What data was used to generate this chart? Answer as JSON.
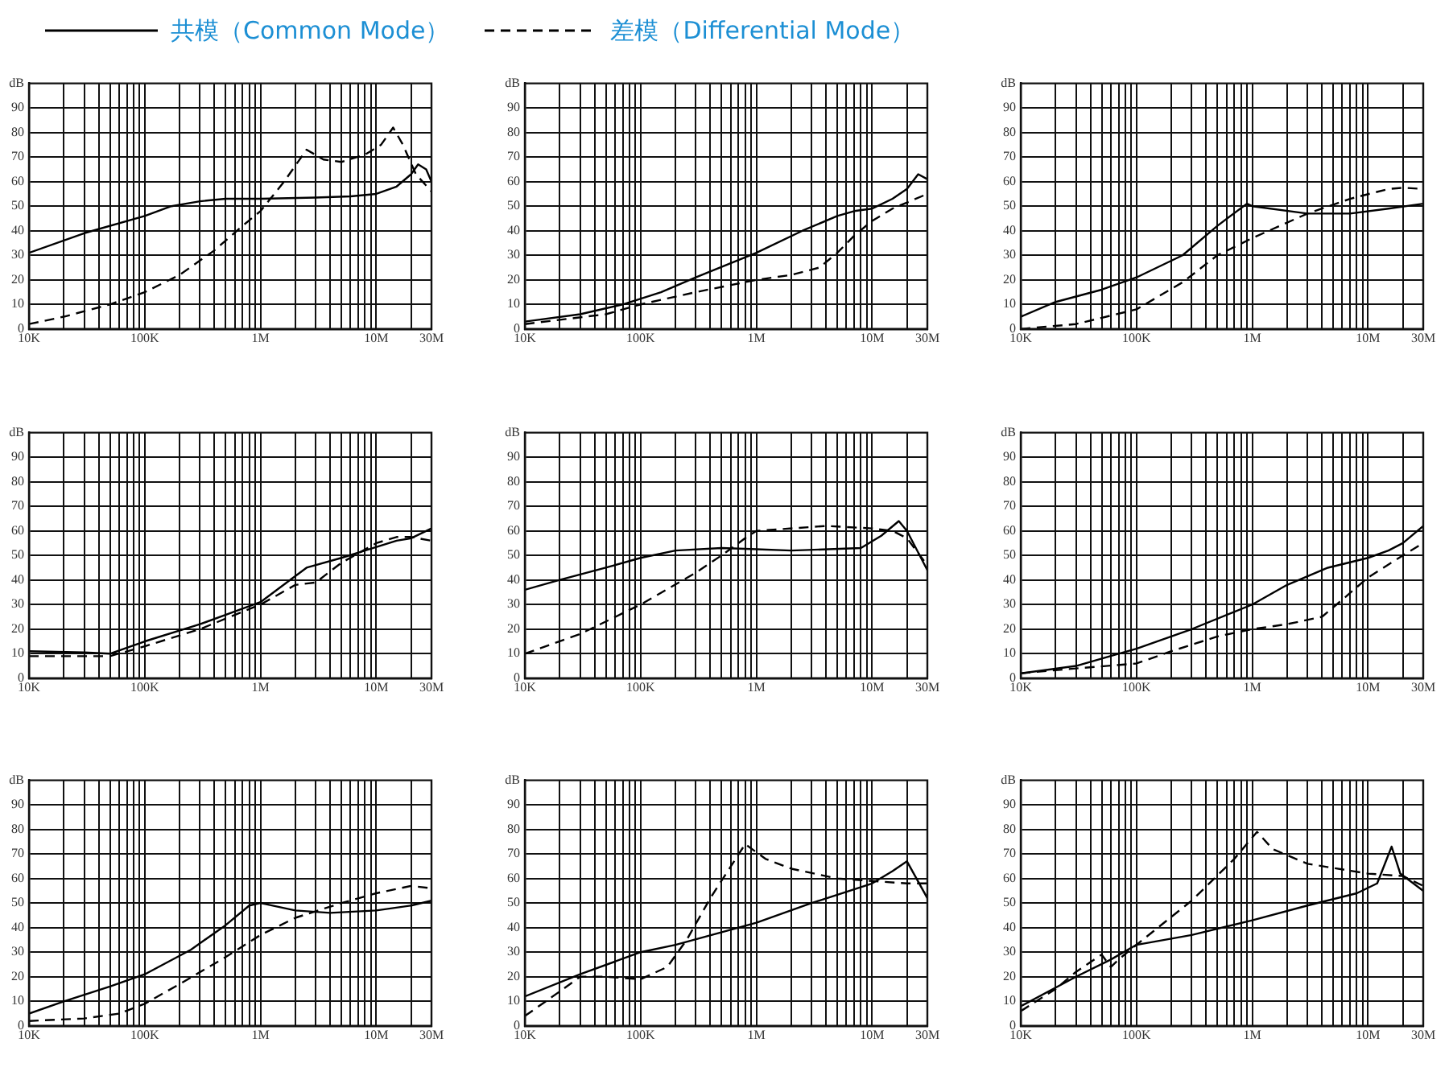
{
  "chart_data": [
    {
      "type": "line",
      "log": "x",
      "legend": "top",
      "grid": true,
      "ylabel": "dB",
      "xlim": [
        10000,
        30000000
      ],
      "ylim": [
        0,
        100
      ],
      "xticks": [
        {
          "value": 10000,
          "label": "10K"
        },
        {
          "value": 20000,
          "label": null
        },
        {
          "value": 30000,
          "label": null
        },
        {
          "value": 40000,
          "label": null
        },
        {
          "value": 50000,
          "label": null
        },
        {
          "value": 60000,
          "label": null
        },
        {
          "value": 70000,
          "label": null
        },
        {
          "value": 80000,
          "label": null
        },
        {
          "value": 90000,
          "label": null
        },
        {
          "value": 100000,
          "label": "100K"
        },
        {
          "value": 200000,
          "label": null
        },
        {
          "value": 300000,
          "label": null
        },
        {
          "value": 400000,
          "label": null
        },
        {
          "value": 500000,
          "label": null
        },
        {
          "value": 600000,
          "label": null
        },
        {
          "value": 700000,
          "label": null
        },
        {
          "value": 800000,
          "label": null
        },
        {
          "value": 900000,
          "label": null
        },
        {
          "value": 1000000,
          "label": "1M"
        },
        {
          "value": 2000000,
          "label": null
        },
        {
          "value": 3000000,
          "label": null
        },
        {
          "value": 4000000,
          "label": null
        },
        {
          "value": 5000000,
          "label": null
        },
        {
          "value": 6000000,
          "label": null
        },
        {
          "value": 7000000,
          "label": null
        },
        {
          "value": 8000000,
          "label": null
        },
        {
          "value": 9000000,
          "label": null
        },
        {
          "value": 10000000,
          "label": "10M"
        },
        {
          "value": 20000000,
          "label": null
        },
        {
          "value": 30000000,
          "label": "30M"
        }
      ],
      "yticks": [
        0,
        10,
        20,
        30,
        40,
        50,
        60,
        70,
        80,
        90
      ],
      "series": [
        {
          "name": "共模（Common Mode）",
          "color": "#000000",
          "line_style": "solid",
          "x": [
            10000,
            30000,
            100000,
            170000,
            300000,
            500000,
            1000000,
            3000000,
            6000000,
            10000000,
            15000000,
            20000000,
            23000000,
            27000000,
            30000000
          ],
          "values": [
            31,
            39,
            46,
            50,
            52,
            53,
            53,
            53.5,
            54,
            55,
            58,
            63,
            67,
            65,
            60
          ]
        },
        {
          "name": "差模（Differential Mode）",
          "color": "#000000",
          "line_style": "dashed",
          "x": [
            10000,
            20000,
            50000,
            100000,
            200000,
            400000,
            700000,
            1000000,
            1600000,
            2500000,
            3500000,
            5000000,
            8000000,
            11000000,
            14000000,
            17000000,
            22000000,
            30000000
          ],
          "values": [
            2,
            5,
            10,
            15,
            22,
            32,
            42,
            48,
            60,
            73,
            69,
            68,
            71,
            75,
            82,
            75,
            63,
            56
          ]
        }
      ]
    },
    {
      "type": "line",
      "log": "x",
      "grid": true,
      "ylabel": "dB",
      "xlim": [
        10000,
        30000000
      ],
      "ylim": [
        0,
        100
      ],
      "xticks": [
        {
          "value": 10000,
          "label": "10K"
        },
        {
          "value": 20000,
          "label": null
        },
        {
          "value": 30000,
          "label": null
        },
        {
          "value": 40000,
          "label": null
        },
        {
          "value": 50000,
          "label": null
        },
        {
          "value": 60000,
          "label": null
        },
        {
          "value": 70000,
          "label": null
        },
        {
          "value": 80000,
          "label": null
        },
        {
          "value": 90000,
          "label": null
        },
        {
          "value": 100000,
          "label": "100K"
        },
        {
          "value": 200000,
          "label": null
        },
        {
          "value": 300000,
          "label": null
        },
        {
          "value": 400000,
          "label": null
        },
        {
          "value": 500000,
          "label": null
        },
        {
          "value": 600000,
          "label": null
        },
        {
          "value": 700000,
          "label": null
        },
        {
          "value": 800000,
          "label": null
        },
        {
          "value": 900000,
          "label": null
        },
        {
          "value": 1000000,
          "label": "1M"
        },
        {
          "value": 2000000,
          "label": null
        },
        {
          "value": 3000000,
          "label": null
        },
        {
          "value": 4000000,
          "label": null
        },
        {
          "value": 5000000,
          "label": null
        },
        {
          "value": 6000000,
          "label": null
        },
        {
          "value": 7000000,
          "label": null
        },
        {
          "value": 8000000,
          "label": null
        },
        {
          "value": 9000000,
          "label": null
        },
        {
          "value": 10000000,
          "label": "10M"
        },
        {
          "value": 20000000,
          "label": null
        },
        {
          "value": 30000000,
          "label": "30M"
        }
      ],
      "yticks": [
        0,
        10,
        20,
        30,
        40,
        50,
        60,
        70,
        80,
        90
      ],
      "series": [
        {
          "color": "#000000",
          "line_style": "solid",
          "x": [
            10000,
            30000,
            70000,
            150000,
            300000,
            1000000,
            2500000,
            5000000,
            7000000,
            10000000,
            15000000,
            20000000,
            25000000,
            30000000
          ],
          "values": [
            3,
            6,
            10,
            15,
            21,
            31,
            40,
            46,
            48,
            49,
            53,
            57,
            63,
            61
          ]
        },
        {
          "color": "#000000",
          "line_style": "dashed",
          "x": [
            10000,
            50000,
            100000,
            300000,
            1000000,
            2000000,
            3500000,
            5000000,
            7000000,
            10000000,
            15000000,
            30000000
          ],
          "values": [
            2,
            6,
            10,
            15,
            20,
            22,
            25,
            31,
            38,
            44,
            49,
            55
          ]
        }
      ]
    },
    {
      "type": "line",
      "log": "x",
      "grid": true,
      "ylabel": "dB",
      "xlim": [
        10000,
        30000000
      ],
      "ylim": [
        0,
        100
      ],
      "xticks": [
        {
          "value": 10000,
          "label": "10K"
        },
        {
          "value": 20000,
          "label": null
        },
        {
          "value": 30000,
          "label": null
        },
        {
          "value": 40000,
          "label": null
        },
        {
          "value": 50000,
          "label": null
        },
        {
          "value": 60000,
          "label": null
        },
        {
          "value": 70000,
          "label": null
        },
        {
          "value": 80000,
          "label": null
        },
        {
          "value": 90000,
          "label": null
        },
        {
          "value": 100000,
          "label": "100K"
        },
        {
          "value": 200000,
          "label": null
        },
        {
          "value": 300000,
          "label": null
        },
        {
          "value": 400000,
          "label": null
        },
        {
          "value": 500000,
          "label": null
        },
        {
          "value": 600000,
          "label": null
        },
        {
          "value": 700000,
          "label": null
        },
        {
          "value": 800000,
          "label": null
        },
        {
          "value": 900000,
          "label": null
        },
        {
          "value": 1000000,
          "label": "1M"
        },
        {
          "value": 2000000,
          "label": null
        },
        {
          "value": 3000000,
          "label": null
        },
        {
          "value": 4000000,
          "label": null
        },
        {
          "value": 5000000,
          "label": null
        },
        {
          "value": 6000000,
          "label": null
        },
        {
          "value": 7000000,
          "label": null
        },
        {
          "value": 8000000,
          "label": null
        },
        {
          "value": 9000000,
          "label": null
        },
        {
          "value": 10000000,
          "label": "10M"
        },
        {
          "value": 20000000,
          "label": null
        },
        {
          "value": 30000000,
          "label": "30M"
        }
      ],
      "yticks": [
        0,
        10,
        20,
        30,
        40,
        50,
        60,
        70,
        80,
        90
      ],
      "series": [
        {
          "color": "#000000",
          "line_style": "solid",
          "x": [
            10000,
            20000,
            50000,
            100000,
            250000,
            500000,
            900000,
            1000000,
            3000000,
            7000000,
            15000000,
            30000000
          ],
          "values": [
            5,
            11,
            16,
            21,
            30,
            42,
            51,
            50,
            47,
            47,
            49,
            51
          ]
        },
        {
          "color": "#000000",
          "line_style": "dashed",
          "x": [
            10000,
            30000,
            100000,
            250000,
            500000,
            1000000,
            3000000,
            7000000,
            15000000,
            20000000,
            30000000
          ],
          "values": [
            0,
            2,
            8,
            19,
            30,
            37,
            47,
            53,
            57,
            57.5,
            57
          ]
        }
      ]
    },
    {
      "type": "line",
      "log": "x",
      "grid": true,
      "ylabel": "dB",
      "xlim": [
        10000,
        30000000
      ],
      "ylim": [
        0,
        100
      ],
      "xticks": [
        {
          "value": 10000,
          "label": "10K"
        },
        {
          "value": 20000,
          "label": null
        },
        {
          "value": 30000,
          "label": null
        },
        {
          "value": 40000,
          "label": null
        },
        {
          "value": 50000,
          "label": null
        },
        {
          "value": 60000,
          "label": null
        },
        {
          "value": 70000,
          "label": null
        },
        {
          "value": 80000,
          "label": null
        },
        {
          "value": 90000,
          "label": null
        },
        {
          "value": 100000,
          "label": "100K"
        },
        {
          "value": 200000,
          "label": null
        },
        {
          "value": 300000,
          "label": null
        },
        {
          "value": 400000,
          "label": null
        },
        {
          "value": 500000,
          "label": null
        },
        {
          "value": 600000,
          "label": null
        },
        {
          "value": 700000,
          "label": null
        },
        {
          "value": 800000,
          "label": null
        },
        {
          "value": 900000,
          "label": null
        },
        {
          "value": 1000000,
          "label": "1M"
        },
        {
          "value": 2000000,
          "label": null
        },
        {
          "value": 3000000,
          "label": null
        },
        {
          "value": 4000000,
          "label": null
        },
        {
          "value": 5000000,
          "label": null
        },
        {
          "value": 6000000,
          "label": null
        },
        {
          "value": 7000000,
          "label": null
        },
        {
          "value": 8000000,
          "label": null
        },
        {
          "value": 9000000,
          "label": null
        },
        {
          "value": 10000000,
          "label": "10M"
        },
        {
          "value": 20000000,
          "label": null
        },
        {
          "value": 30000000,
          "label": "30M"
        }
      ],
      "yticks": [
        0,
        10,
        20,
        30,
        40,
        50,
        60,
        70,
        80,
        90
      ],
      "series": [
        {
          "color": "#000000",
          "line_style": "solid",
          "x": [
            10000,
            30000,
            50000,
            100000,
            300000,
            1000000,
            1800000,
            2500000,
            5000000,
            8000000,
            15000000,
            20000000,
            30000000
          ],
          "values": [
            11,
            10.5,
            10,
            15,
            22,
            31,
            40,
            45,
            49,
            52,
            56,
            57,
            61
          ]
        },
        {
          "color": "#000000",
          "line_style": "dashed",
          "x": [
            10000,
            30000,
            50000,
            100000,
            300000,
            1000000,
            2000000,
            3000000,
            5000000,
            10000000,
            15000000,
            20000000,
            30000000
          ],
          "values": [
            9,
            9,
            9,
            13,
            20,
            30,
            38,
            39,
            47,
            55,
            57.5,
            57.5,
            56
          ]
        }
      ]
    },
    {
      "type": "line",
      "log": "x",
      "grid": true,
      "ylabel": "dB",
      "xlim": [
        10000,
        30000000
      ],
      "ylim": [
        0,
        100
      ],
      "xticks": [
        {
          "value": 10000,
          "label": "10K"
        },
        {
          "value": 20000,
          "label": null
        },
        {
          "value": 30000,
          "label": null
        },
        {
          "value": 40000,
          "label": null
        },
        {
          "value": 50000,
          "label": null
        },
        {
          "value": 60000,
          "label": null
        },
        {
          "value": 70000,
          "label": null
        },
        {
          "value": 80000,
          "label": null
        },
        {
          "value": 90000,
          "label": null
        },
        {
          "value": 100000,
          "label": "100K"
        },
        {
          "value": 200000,
          "label": null
        },
        {
          "value": 300000,
          "label": null
        },
        {
          "value": 400000,
          "label": null
        },
        {
          "value": 500000,
          "label": null
        },
        {
          "value": 600000,
          "label": null
        },
        {
          "value": 700000,
          "label": null
        },
        {
          "value": 800000,
          "label": null
        },
        {
          "value": 900000,
          "label": null
        },
        {
          "value": 1000000,
          "label": "1M"
        },
        {
          "value": 2000000,
          "label": null
        },
        {
          "value": 3000000,
          "label": null
        },
        {
          "value": 4000000,
          "label": null
        },
        {
          "value": 5000000,
          "label": null
        },
        {
          "value": 6000000,
          "label": null
        },
        {
          "value": 7000000,
          "label": null
        },
        {
          "value": 8000000,
          "label": null
        },
        {
          "value": 9000000,
          "label": null
        },
        {
          "value": 10000000,
          "label": "10M"
        },
        {
          "value": 20000000,
          "label": null
        },
        {
          "value": 30000000,
          "label": "30M"
        }
      ],
      "yticks": [
        0,
        10,
        20,
        30,
        40,
        50,
        60,
        70,
        80,
        90
      ],
      "series": [
        {
          "color": "#000000",
          "line_style": "solid",
          "x": [
            10000,
            20000,
            50000,
            100000,
            200000,
            500000,
            1000000,
            2000000,
            8000000,
            12000000,
            17000000,
            20000000,
            30000000
          ],
          "values": [
            36,
            40,
            45,
            49,
            52,
            53,
            52.5,
            52,
            53,
            58,
            64,
            60,
            44
          ]
        },
        {
          "color": "#000000",
          "line_style": "dashed",
          "x": [
            10000,
            30000,
            100000,
            300000,
            500000,
            800000,
            1000000,
            4000000,
            10000000,
            15000000,
            20000000,
            30000000
          ],
          "values": [
            10,
            18,
            30,
            43,
            50,
            57,
            60,
            62,
            61,
            60,
            57,
            46
          ]
        }
      ]
    },
    {
      "type": "line",
      "log": "x",
      "grid": true,
      "ylabel": "dB",
      "xlim": [
        10000,
        30000000
      ],
      "ylim": [
        0,
        100
      ],
      "xticks": [
        {
          "value": 10000,
          "label": "10K"
        },
        {
          "value": 20000,
          "label": null
        },
        {
          "value": 30000,
          "label": null
        },
        {
          "value": 40000,
          "label": null
        },
        {
          "value": 50000,
          "label": null
        },
        {
          "value": 60000,
          "label": null
        },
        {
          "value": 70000,
          "label": null
        },
        {
          "value": 80000,
          "label": null
        },
        {
          "value": 90000,
          "label": null
        },
        {
          "value": 100000,
          "label": "100K"
        },
        {
          "value": 200000,
          "label": null
        },
        {
          "value": 300000,
          "label": null
        },
        {
          "value": 400000,
          "label": null
        },
        {
          "value": 500000,
          "label": null
        },
        {
          "value": 600000,
          "label": null
        },
        {
          "value": 700000,
          "label": null
        },
        {
          "value": 800000,
          "label": null
        },
        {
          "value": 900000,
          "label": null
        },
        {
          "value": 1000000,
          "label": "1M"
        },
        {
          "value": 2000000,
          "label": null
        },
        {
          "value": 3000000,
          "label": null
        },
        {
          "value": 4000000,
          "label": null
        },
        {
          "value": 5000000,
          "label": null
        },
        {
          "value": 6000000,
          "label": null
        },
        {
          "value": 7000000,
          "label": null
        },
        {
          "value": 8000000,
          "label": null
        },
        {
          "value": 9000000,
          "label": null
        },
        {
          "value": 10000000,
          "label": "10M"
        },
        {
          "value": 20000000,
          "label": null
        },
        {
          "value": 30000000,
          "label": "30M"
        }
      ],
      "yticks": [
        0,
        10,
        20,
        30,
        40,
        50,
        60,
        70,
        80,
        90
      ],
      "series": [
        {
          "color": "#000000",
          "line_style": "solid",
          "x": [
            10000,
            30000,
            70000,
            100000,
            300000,
            1000000,
            2000000,
            4500000,
            10000000,
            15000000,
            20000000,
            30000000
          ],
          "values": [
            2,
            5,
            10,
            12,
            20,
            30,
            38,
            45,
            49,
            52,
            55,
            62
          ]
        },
        {
          "color": "#000000",
          "line_style": "dashed",
          "x": [
            10000,
            30000,
            100000,
            200000,
            500000,
            1000000,
            2000000,
            4000000,
            6000000,
            10000000,
            20000000,
            30000000
          ],
          "values": [
            2,
            4,
            6,
            11,
            17,
            20,
            22,
            25,
            32,
            41,
            50,
            55
          ]
        }
      ]
    },
    {
      "type": "line",
      "log": "x",
      "grid": true,
      "ylabel": "dB",
      "xlim": [
        10000,
        30000000
      ],
      "ylim": [
        0,
        100
      ],
      "xticks": [
        {
          "value": 10000,
          "label": "10K"
        },
        {
          "value": 20000,
          "label": null
        },
        {
          "value": 30000,
          "label": null
        },
        {
          "value": 40000,
          "label": null
        },
        {
          "value": 50000,
          "label": null
        },
        {
          "value": 60000,
          "label": null
        },
        {
          "value": 70000,
          "label": null
        },
        {
          "value": 80000,
          "label": null
        },
        {
          "value": 90000,
          "label": null
        },
        {
          "value": 100000,
          "label": "100K"
        },
        {
          "value": 200000,
          "label": null
        },
        {
          "value": 300000,
          "label": null
        },
        {
          "value": 400000,
          "label": null
        },
        {
          "value": 500000,
          "label": null
        },
        {
          "value": 600000,
          "label": null
        },
        {
          "value": 700000,
          "label": null
        },
        {
          "value": 800000,
          "label": null
        },
        {
          "value": 900000,
          "label": null
        },
        {
          "value": 1000000,
          "label": "1M"
        },
        {
          "value": 2000000,
          "label": null
        },
        {
          "value": 3000000,
          "label": null
        },
        {
          "value": 4000000,
          "label": null
        },
        {
          "value": 5000000,
          "label": null
        },
        {
          "value": 6000000,
          "label": null
        },
        {
          "value": 7000000,
          "label": null
        },
        {
          "value": 8000000,
          "label": null
        },
        {
          "value": 9000000,
          "label": null
        },
        {
          "value": 10000000,
          "label": "10M"
        },
        {
          "value": 20000000,
          "label": null
        },
        {
          "value": 30000000,
          "label": "30M"
        }
      ],
      "yticks": [
        0,
        10,
        20,
        30,
        40,
        50,
        60,
        70,
        80,
        90
      ],
      "series": [
        {
          "color": "#000000",
          "line_style": "solid",
          "x": [
            10000,
            20000,
            50000,
            100000,
            250000,
            500000,
            800000,
            1000000,
            2000000,
            4000000,
            10000000,
            20000000,
            30000000
          ],
          "values": [
            5,
            10,
            16,
            21,
            31,
            41,
            49,
            50,
            47,
            46,
            47,
            49,
            51
          ]
        },
        {
          "color": "#000000",
          "line_style": "dashed",
          "x": [
            10000,
            30000,
            60000,
            100000,
            200000,
            500000,
            1000000,
            2000000,
            5000000,
            10000000,
            20000000,
            30000000
          ],
          "values": [
            2,
            3,
            5,
            9,
            17,
            28,
            37,
            44,
            50,
            54,
            57,
            56
          ]
        }
      ]
    },
    {
      "type": "line",
      "log": "x",
      "grid": true,
      "ylabel": "dB",
      "xlim": [
        10000,
        30000000
      ],
      "ylim": [
        0,
        100
      ],
      "xticks": [
        {
          "value": 10000,
          "label": "10K"
        },
        {
          "value": 20000,
          "label": null
        },
        {
          "value": 30000,
          "label": null
        },
        {
          "value": 40000,
          "label": null
        },
        {
          "value": 50000,
          "label": null
        },
        {
          "value": 60000,
          "label": null
        },
        {
          "value": 70000,
          "label": null
        },
        {
          "value": 80000,
          "label": null
        },
        {
          "value": 90000,
          "label": null
        },
        {
          "value": 100000,
          "label": "100K"
        },
        {
          "value": 200000,
          "label": null
        },
        {
          "value": 300000,
          "label": null
        },
        {
          "value": 400000,
          "label": null
        },
        {
          "value": 500000,
          "label": null
        },
        {
          "value": 600000,
          "label": null
        },
        {
          "value": 700000,
          "label": null
        },
        {
          "value": 800000,
          "label": null
        },
        {
          "value": 900000,
          "label": null
        },
        {
          "value": 1000000,
          "label": "1M"
        },
        {
          "value": 2000000,
          "label": null
        },
        {
          "value": 3000000,
          "label": null
        },
        {
          "value": 4000000,
          "label": null
        },
        {
          "value": 5000000,
          "label": null
        },
        {
          "value": 6000000,
          "label": null
        },
        {
          "value": 7000000,
          "label": null
        },
        {
          "value": 8000000,
          "label": null
        },
        {
          "value": 9000000,
          "label": null
        },
        {
          "value": 10000000,
          "label": "10M"
        },
        {
          "value": 20000000,
          "label": null
        },
        {
          "value": 30000000,
          "label": "30M"
        }
      ],
      "yticks": [
        0,
        10,
        20,
        30,
        40,
        50,
        60,
        70,
        80,
        90
      ],
      "series": [
        {
          "color": "#000000",
          "line_style": "solid",
          "x": [
            10000,
            30000,
            100000,
            200000,
            1000000,
            3000000,
            10000000,
            15000000,
            20000000,
            30000000
          ],
          "values": [
            12,
            21,
            30,
            33,
            42,
            50,
            58,
            63,
            67,
            52
          ]
        },
        {
          "color": "#000000",
          "line_style": "dashed",
          "x": [
            10000,
            20000,
            30000,
            50000,
            100000,
            170000,
            250000,
            400000,
            800000,
            1200000,
            2000000,
            5000000,
            10000000,
            20000000,
            30000000
          ],
          "values": [
            4,
            14,
            20,
            20,
            19,
            24,
            35,
            52,
            74,
            68,
            64,
            60,
            59,
            58,
            58
          ]
        }
      ]
    },
    {
      "type": "line",
      "log": "x",
      "grid": true,
      "ylabel": "dB",
      "xlim": [
        10000,
        30000000
      ],
      "ylim": [
        0,
        100
      ],
      "xticks": [
        {
          "value": 10000,
          "label": "10K"
        },
        {
          "value": 20000,
          "label": null
        },
        {
          "value": 30000,
          "label": null
        },
        {
          "value": 40000,
          "label": null
        },
        {
          "value": 50000,
          "label": null
        },
        {
          "value": 60000,
          "label": null
        },
        {
          "value": 70000,
          "label": null
        },
        {
          "value": 80000,
          "label": null
        },
        {
          "value": 90000,
          "label": null
        },
        {
          "value": 100000,
          "label": "100K"
        },
        {
          "value": 200000,
          "label": null
        },
        {
          "value": 300000,
          "label": null
        },
        {
          "value": 400000,
          "label": null
        },
        {
          "value": 500000,
          "label": null
        },
        {
          "value": 600000,
          "label": null
        },
        {
          "value": 700000,
          "label": null
        },
        {
          "value": 800000,
          "label": null
        },
        {
          "value": 900000,
          "label": null
        },
        {
          "value": 1000000,
          "label": "1M"
        },
        {
          "value": 2000000,
          "label": null
        },
        {
          "value": 3000000,
          "label": null
        },
        {
          "value": 4000000,
          "label": null
        },
        {
          "value": 5000000,
          "label": null
        },
        {
          "value": 6000000,
          "label": null
        },
        {
          "value": 7000000,
          "label": null
        },
        {
          "value": 8000000,
          "label": null
        },
        {
          "value": 9000000,
          "label": null
        },
        {
          "value": 10000000,
          "label": "10M"
        },
        {
          "value": 20000000,
          "label": null
        },
        {
          "value": 30000000,
          "label": "30M"
        }
      ],
      "yticks": [
        0,
        10,
        20,
        30,
        40,
        50,
        60,
        70,
        80,
        90
      ],
      "series": [
        {
          "color": "#000000",
          "line_style": "solid",
          "x": [
            10000,
            30000,
            60000,
            100000,
            300000,
            1000000,
            3000000,
            8000000,
            12000000,
            16000000,
            19000000,
            30000000
          ],
          "values": [
            8,
            20,
            27,
            33,
            37,
            43,
            49,
            54,
            58,
            73,
            62,
            55
          ]
        },
        {
          "color": "#000000",
          "line_style": "dashed",
          "x": [
            10000,
            20000,
            30000,
            50000,
            60000,
            70000,
            100000,
            300000,
            700000,
            1100000,
            1500000,
            3000000,
            10000000,
            20000000,
            30000000
          ],
          "values": [
            6,
            15,
            22,
            29,
            24,
            27,
            33,
            51,
            68,
            79,
            72,
            66,
            62,
            61,
            57
          ]
        }
      ]
    }
  ]
}
